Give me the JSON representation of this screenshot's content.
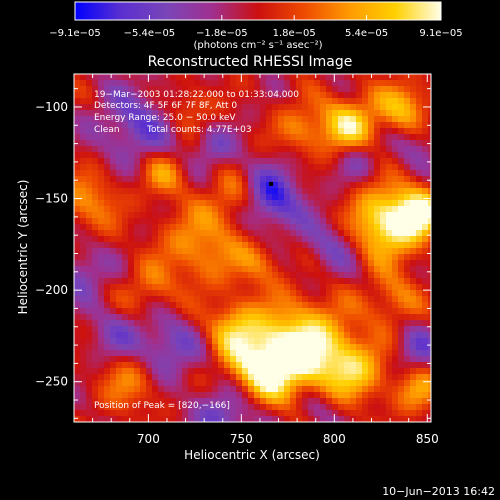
{
  "colorbar": {
    "ticks": [
      {
        "value": -9.1e-05,
        "label": "−9.1e−05"
      },
      {
        "value": -5.4e-05,
        "label": "−5.4e−05"
      },
      {
        "value": -1.8e-05,
        "label": "−1.8e−05"
      },
      {
        "value": 1.8e-05,
        "label": "1.8e−05"
      },
      {
        "value": 5.4e-05,
        "label": "5.4e−05"
      },
      {
        "value": 9.1e-05,
        "label": "9.1e−05"
      }
    ],
    "range": [
      -9.1e-05,
      9.1e-05
    ],
    "units_label": "(photons cm⁻² s⁻¹ asec⁻²)",
    "palette": [
      "#0000ff",
      "#5a2fd0",
      "#7a45b8",
      "#a0308f",
      "#cc1010",
      "#ee4a00",
      "#ff9a00",
      "#ffd000",
      "#ffffe8"
    ]
  },
  "chart_data": {
    "type": "heatmap",
    "title": "Reconstructed RHESSI Image",
    "xlabel": "Heliocentric X (arcsec)",
    "ylabel": "Heliocentric Y (arcsec)",
    "xlim": [
      660,
      852
    ],
    "ylim": [
      -272,
      -82
    ],
    "xticks": [
      700,
      750,
      800,
      850
    ],
    "yticks": [
      -100,
      -150,
      -200,
      -250
    ],
    "annotations": {
      "time": "19−Mar−2003 01:28:22.000 to 01:33:04.000",
      "detectors": "Detectors: 4F 5F 6F 7F 8F, Att 0",
      "energy": "Energy Range: 25.0 − 50.0 keV",
      "method": "Clean",
      "counts": "Total counts: 4.77E+03",
      "peak": "Position of Peak = [820,−166]"
    },
    "peak": {
      "x": 820,
      "y": -166
    },
    "marked_point": {
      "x": 766,
      "y": -142
    },
    "value_range": [
      -9.1e-05,
      9.1e-05
    ]
  },
  "footer": {
    "timestamp": "10−Jun−2013 16:42"
  }
}
